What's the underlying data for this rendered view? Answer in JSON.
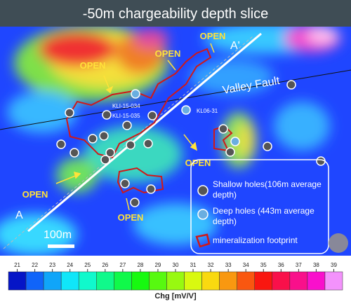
{
  "title": "-50m chargeability depth slice",
  "map": {
    "open_labels": [
      "OPEN",
      "OPEN",
      "OPEN",
      "OPEN",
      "OPEN",
      "OPEN"
    ],
    "section_labels": [
      "A'",
      "A"
    ],
    "fault": "Valley Fault",
    "holes": [
      "KLI-15-034",
      "KLI-15-035",
      "KL06-31"
    ],
    "scale": "100m"
  },
  "legend": {
    "items": [
      "Shallow holes(106m average depth)",
      "Deep holes (443m average depth)",
      "mineralization footprint"
    ]
  },
  "colorbar": {
    "ticks": [
      21,
      22,
      23,
      24,
      25,
      26,
      27,
      28,
      29,
      30,
      31,
      32,
      33,
      34,
      35,
      36,
      37,
      38,
      39
    ],
    "label": "Chg [mV/V]"
  }
}
